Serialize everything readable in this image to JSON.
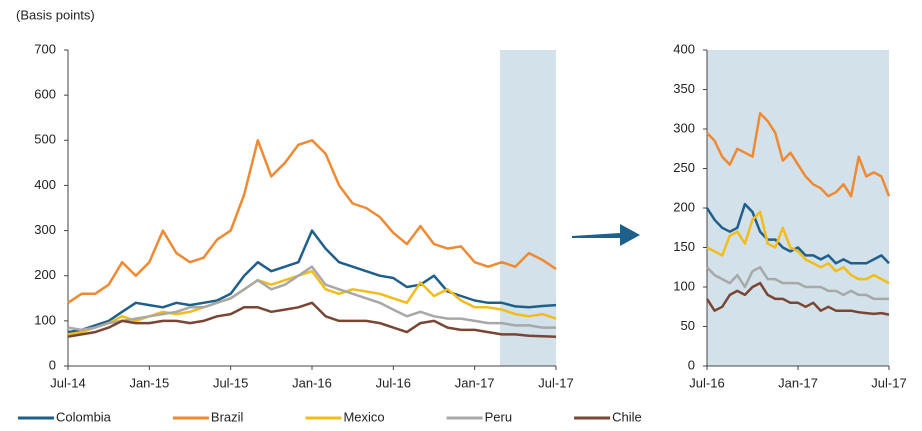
{
  "chart_data": [
    {
      "type": "line",
      "y_label": "(Basis points)",
      "categories": [
        "Jul-14",
        null,
        null,
        null,
        null,
        null,
        "Jan-15",
        null,
        null,
        null,
        null,
        null,
        "Jul-15",
        null,
        null,
        null,
        null,
        null,
        "Jan-16",
        null,
        null,
        null,
        null,
        null,
        "Jul-16",
        null,
        null,
        null,
        null,
        null,
        "Jan-17",
        null,
        null,
        null,
        null,
        null,
        "Jul-17"
      ],
      "ylim": [
        0,
        700
      ],
      "yticks": [
        0,
        100,
        200,
        300,
        400,
        500,
        600,
        700
      ],
      "series": [
        {
          "name": "Colombia",
          "color": "#1f5f8b",
          "values": [
            75,
            80,
            90,
            100,
            120,
            140,
            135,
            130,
            140,
            135,
            140,
            145,
            160,
            200,
            230,
            210,
            220,
            230,
            300,
            260,
            230,
            220,
            210,
            200,
            195,
            175,
            180,
            200,
            165,
            155,
            145,
            140,
            140,
            132,
            130,
            133,
            135
          ]
        },
        {
          "name": "Brazil",
          "color": "#ef8a33",
          "values": [
            140,
            160,
            160,
            180,
            230,
            200,
            230,
            300,
            250,
            230,
            240,
            280,
            300,
            380,
            500,
            420,
            450,
            490,
            500,
            470,
            400,
            360,
            350,
            330,
            295,
            270,
            310,
            270,
            260,
            265,
            230,
            220,
            230,
            220,
            250,
            235,
            215
          ]
        },
        {
          "name": "Mexico",
          "color": "#f2bc1b",
          "values": [
            70,
            75,
            85,
            95,
            110,
            100,
            110,
            120,
            115,
            120,
            130,
            140,
            150,
            170,
            190,
            180,
            190,
            200,
            210,
            170,
            160,
            170,
            165,
            160,
            150,
            140,
            185,
            155,
            170,
            145,
            130,
            130,
            125,
            115,
            110,
            115,
            105
          ]
        },
        {
          "name": "Peru",
          "color": "#a8a8a8",
          "values": [
            85,
            80,
            85,
            95,
            100,
            105,
            110,
            115,
            120,
            130,
            130,
            140,
            150,
            170,
            190,
            170,
            180,
            200,
            220,
            180,
            170,
            160,
            150,
            140,
            125,
            110,
            120,
            110,
            105,
            105,
            100,
            95,
            95,
            90,
            90,
            85,
            85
          ]
        },
        {
          "name": "Chile",
          "color": "#7a4634",
          "values": [
            65,
            70,
            75,
            85,
            100,
            95,
            95,
            100,
            100,
            95,
            100,
            110,
            115,
            130,
            130,
            120,
            125,
            130,
            140,
            110,
            100,
            100,
            100,
            95,
            85,
            75,
            95,
            100,
            85,
            80,
            80,
            75,
            70,
            70,
            67,
            66,
            65
          ]
        }
      ]
    },
    {
      "type": "line",
      "categories": [
        "Jul-16",
        null,
        null,
        null,
        null,
        null,
        null,
        null,
        null,
        null,
        null,
        null,
        "Jan-17",
        null,
        null,
        null,
        null,
        null,
        null,
        null,
        null,
        null,
        null,
        null,
        "Jul-17"
      ],
      "ylim": [
        0,
        400
      ],
      "yticks": [
        0,
        50,
        100,
        150,
        200,
        250,
        300,
        350,
        400
      ],
      "series": [
        {
          "color": "#1f5f8b",
          "values": [
            200,
            185,
            175,
            170,
            175,
            205,
            195,
            170,
            160,
            160,
            150,
            145,
            150,
            140,
            140,
            135,
            140,
            130,
            135,
            130,
            130,
            130,
            135,
            140,
            130
          ]
        },
        {
          "color": "#ef8a33",
          "values": [
            295,
            285,
            265,
            255,
            275,
            270,
            265,
            320,
            310,
            295,
            260,
            270,
            255,
            240,
            230,
            225,
            215,
            220,
            230,
            215,
            265,
            240,
            245,
            240,
            215
          ]
        },
        {
          "color": "#f2bc1b",
          "values": [
            150,
            145,
            140,
            165,
            170,
            155,
            185,
            195,
            155,
            150,
            175,
            150,
            145,
            135,
            130,
            125,
            130,
            120,
            125,
            115,
            110,
            110,
            115,
            110,
            105
          ]
        },
        {
          "color": "#a8a8a8",
          "values": [
            125,
            115,
            110,
            105,
            115,
            100,
            120,
            125,
            110,
            110,
            105,
            105,
            105,
            100,
            100,
            100,
            95,
            95,
            90,
            95,
            90,
            90,
            85,
            85,
            85
          ]
        },
        {
          "color": "#7a4634",
          "values": [
            85,
            70,
            75,
            90,
            95,
            90,
            100,
            105,
            90,
            85,
            85,
            80,
            80,
            75,
            80,
            70,
            75,
            70,
            70,
            70,
            68,
            67,
            66,
            67,
            65
          ]
        }
      ]
    }
  ]
}
